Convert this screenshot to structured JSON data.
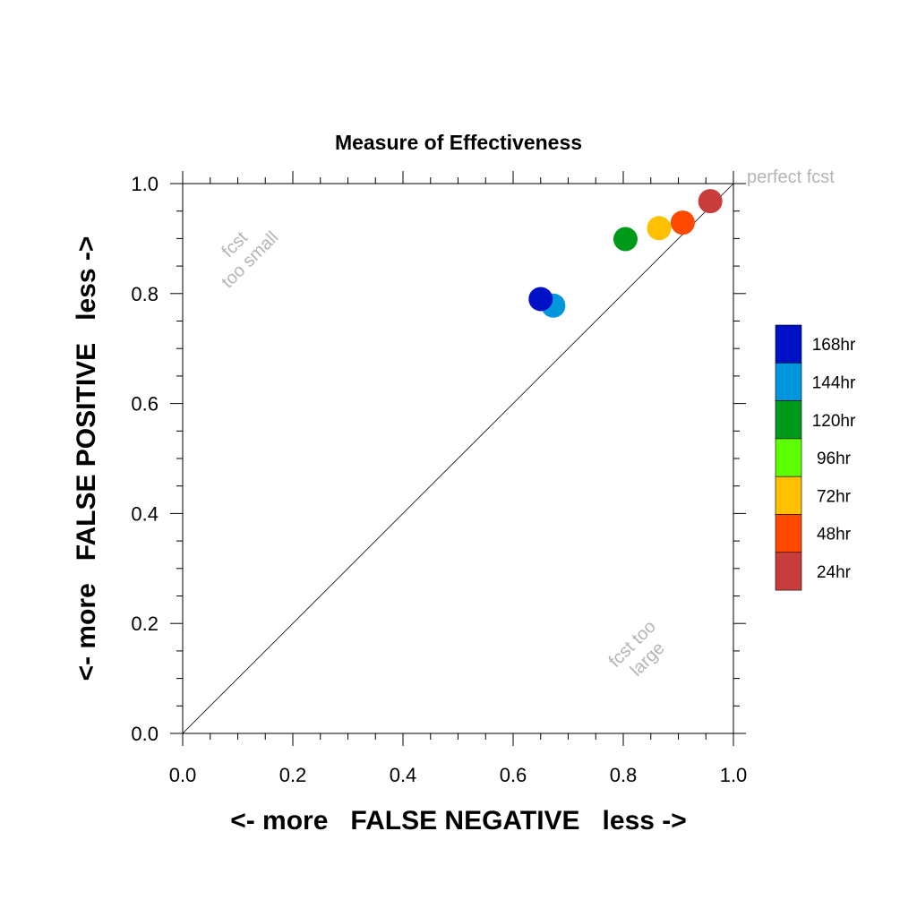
{
  "chart_data": {
    "type": "scatter",
    "title": "Measure of Effectiveness",
    "xlabel": "<- more   FALSE NEGATIVE   less ->",
    "ylabel": "<- more   FALSE POSITIVE   less ->",
    "xlim": [
      0.0,
      1.0
    ],
    "ylim": [
      0.0,
      1.0
    ],
    "x_ticks": [
      "0.0",
      "0.2",
      "0.4",
      "0.6",
      "0.8",
      "1.0"
    ],
    "y_ticks": [
      "0.0",
      "0.2",
      "0.4",
      "0.6",
      "0.8",
      "1.0"
    ],
    "grid": false,
    "legend_position": "right",
    "diagonal_line": true,
    "annotations": {
      "perfect": "perfect fcst",
      "too_small_1": "fcst",
      "too_small_2": "too small",
      "too_large_1": "fcst too",
      "too_large_2": "large"
    },
    "series": [
      {
        "name": "168hr",
        "color": "#0010c4",
        "x": 0.65,
        "y": 0.79
      },
      {
        "name": "144hr",
        "color": "#0096dc",
        "x": 0.673,
        "y": 0.778
      },
      {
        "name": "120hr",
        "color": "#009a1a",
        "x": 0.804,
        "y": 0.899
      },
      {
        "name": "96hr",
        "color": "#5dff00",
        "x": null,
        "y": null
      },
      {
        "name": "72hr",
        "color": "#ffc000",
        "x": 0.865,
        "y": 0.919
      },
      {
        "name": "48hr",
        "color": "#ff4800",
        "x": 0.908,
        "y": 0.929
      },
      {
        "name": "24hr",
        "color": "#c83c3c",
        "x": 0.958,
        "y": 0.968
      }
    ]
  }
}
